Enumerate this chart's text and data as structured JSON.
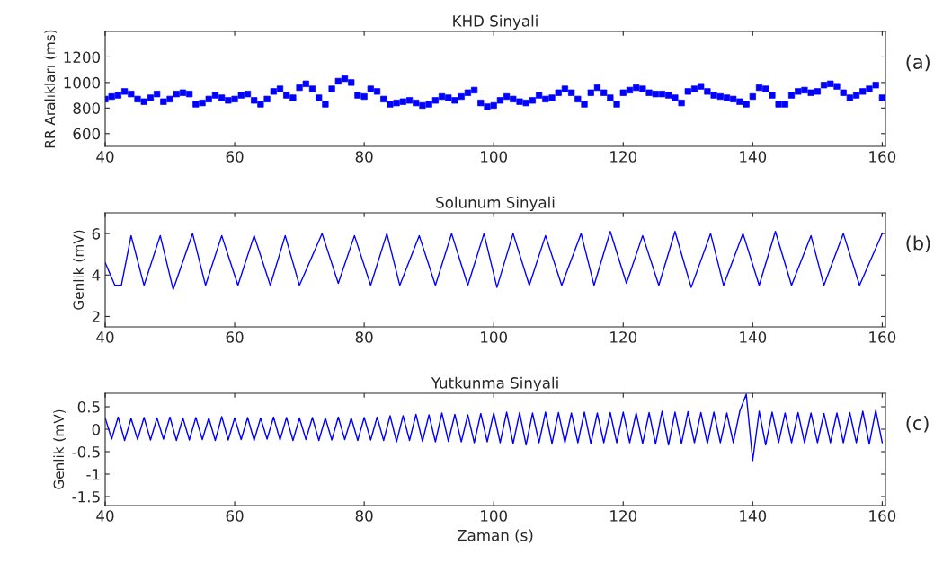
{
  "chart_data": [
    {
      "type": "scatter",
      "title": "KHD Sinyali",
      "ylabel": "RR Aralıkları (ms)",
      "annotations": [
        "(a)"
      ],
      "marker": "square",
      "xlim": [
        40,
        160.5
      ],
      "xticks": [
        40,
        60,
        80,
        100,
        120,
        140,
        160
      ],
      "ylim": [
        500,
        1400
      ],
      "yticks": [
        600,
        800,
        1000,
        1200
      ],
      "x": [
        40,
        41,
        42,
        43,
        44,
        45,
        46,
        47,
        48,
        49,
        50,
        51,
        52,
        53,
        54,
        55,
        56,
        57,
        58,
        59,
        60,
        61,
        62,
        63,
        64,
        65,
        66,
        67,
        68,
        69,
        70,
        71,
        72,
        73,
        74,
        75,
        76,
        77,
        78,
        79,
        80,
        81,
        82,
        83,
        84,
        85,
        86,
        87,
        88,
        89,
        90,
        91,
        92,
        93,
        94,
        95,
        96,
        97,
        98,
        99,
        100,
        101,
        102,
        103,
        104,
        105,
        106,
        107,
        108,
        109,
        110,
        111,
        112,
        113,
        114,
        115,
        116,
        117,
        118,
        119,
        120,
        121,
        122,
        123,
        124,
        125,
        126,
        127,
        128,
        129,
        130,
        131,
        132,
        133,
        134,
        135,
        136,
        137,
        138,
        139,
        140,
        141,
        142,
        143,
        144,
        145,
        146,
        147,
        148,
        149,
        150,
        151,
        152,
        153,
        154,
        155,
        156,
        157,
        158,
        159,
        160
      ],
      "series": [
        {
          "color": "#0000ff",
          "values": [
            870,
            890,
            900,
            930,
            910,
            870,
            850,
            880,
            910,
            850,
            870,
            910,
            920,
            910,
            830,
            840,
            870,
            900,
            880,
            860,
            870,
            900,
            910,
            860,
            830,
            870,
            930,
            950,
            900,
            880,
            960,
            990,
            950,
            880,
            830,
            950,
            1010,
            1030,
            1000,
            900,
            890,
            950,
            930,
            870,
            830,
            840,
            850,
            860,
            840,
            820,
            830,
            860,
            890,
            880,
            860,
            890,
            920,
            940,
            840,
            810,
            820,
            860,
            890,
            870,
            850,
            840,
            860,
            900,
            870,
            880,
            920,
            950,
            920,
            870,
            830,
            920,
            960,
            920,
            880,
            830,
            920,
            940,
            960,
            950,
            920,
            910,
            910,
            900,
            880,
            840,
            930,
            950,
            970,
            930,
            900,
            890,
            880,
            870,
            850,
            830,
            890,
            960,
            950,
            900,
            830,
            830,
            900,
            930,
            940,
            920,
            930,
            980,
            990,
            970,
            920,
            880,
            900,
            930,
            950,
            980,
            880
          ]
        }
      ]
    },
    {
      "type": "line",
      "title": "Solunum Sinyali",
      "ylabel": "Genlik (mV)",
      "annotations": [
        "(b)"
      ],
      "xlim": [
        40,
        160.5
      ],
      "xticks": [
        40,
        60,
        80,
        100,
        120,
        140,
        160
      ],
      "ylim": [
        1.5,
        7
      ],
      "yticks": [
        2,
        4,
        6
      ],
      "x": [
        40,
        41.5,
        42.5,
        44,
        46,
        48.5,
        50.5,
        53.5,
        55.5,
        58,
        60.5,
        63,
        65.5,
        67.8,
        70,
        73.5,
        76,
        78.5,
        81,
        83.5,
        85.5,
        88.5,
        91,
        93.5,
        96,
        98.5,
        100.5,
        103,
        105.5,
        108,
        110.5,
        113.5,
        115.5,
        118,
        120.5,
        123,
        125.5,
        128,
        130.5,
        133.5,
        135.5,
        138.5,
        141,
        143.5,
        146,
        149,
        151,
        154,
        156.5,
        160
      ],
      "series": [
        {
          "color": "#0000ff",
          "values": [
            4.6,
            3.5,
            3.5,
            5.9,
            3.5,
            5.9,
            3.3,
            6.0,
            3.5,
            5.9,
            3.5,
            5.9,
            3.5,
            5.9,
            3.5,
            6.0,
            3.6,
            5.9,
            3.5,
            6.0,
            3.5,
            5.9,
            3.5,
            6.0,
            3.5,
            6.0,
            3.4,
            6.0,
            3.5,
            5.9,
            3.5,
            6.0,
            3.5,
            6.1,
            3.6,
            5.9,
            3.5,
            6.1,
            3.4,
            6.0,
            3.5,
            6.0,
            3.5,
            6.1,
            3.5,
            5.9,
            3.5,
            6.0,
            3.5,
            6.0
          ]
        }
      ]
    },
    {
      "type": "line",
      "title": "Yutkunma Sinyali",
      "xlabel": "Zaman (s)",
      "ylabel": "Genlik (mV)",
      "annotations": [
        "(c)"
      ],
      "xlim": [
        40,
        160.5
      ],
      "xticks": [
        40,
        60,
        80,
        100,
        120,
        140,
        160
      ],
      "ylim": [
        -1.7,
        0.8
      ],
      "yticks": [
        0.5,
        0,
        -0.5,
        -1,
        -1.5
      ],
      "x": [
        40,
        41,
        42,
        43,
        44,
        45,
        46,
        47,
        48,
        49,
        50,
        51,
        52,
        53,
        54,
        55,
        56,
        57,
        58,
        59,
        60,
        61,
        62,
        63,
        64,
        65,
        66,
        67,
        68,
        69,
        70,
        71,
        72,
        73,
        74,
        75,
        76,
        77,
        78,
        79,
        80,
        81,
        82,
        83,
        84,
        85,
        86,
        87,
        88,
        89,
        90,
        91,
        92,
        93,
        94,
        95,
        96,
        97,
        98,
        99,
        100,
        101,
        102,
        103,
        104,
        105,
        106,
        107,
        108,
        109,
        110,
        111,
        112,
        113,
        114,
        115,
        116,
        117,
        118,
        119,
        120,
        121,
        122,
        123,
        124,
        125,
        126,
        127,
        128,
        129,
        130,
        131,
        132,
        133,
        134,
        135,
        136,
        137,
        138,
        139,
        140,
        141,
        142,
        143,
        144,
        145,
        146,
        147,
        148,
        149,
        150,
        151,
        152,
        153,
        154,
        155,
        156,
        157,
        158,
        159,
        160
      ],
      "series": [
        {
          "color": "#0000ff",
          "values": [
            0.25,
            -0.22,
            0.27,
            -0.25,
            0.24,
            -0.23,
            0.26,
            -0.24,
            0.25,
            -0.22,
            0.27,
            -0.25,
            0.25,
            -0.24,
            0.26,
            -0.23,
            0.25,
            -0.25,
            0.28,
            -0.24,
            0.25,
            -0.23,
            0.26,
            -0.25,
            0.25,
            -0.22,
            0.27,
            -0.24,
            0.26,
            -0.25,
            0.25,
            -0.23,
            0.26,
            -0.25,
            0.25,
            -0.24,
            0.27,
            -0.23,
            0.25,
            -0.25,
            0.26,
            -0.24,
            0.27,
            -0.25,
            0.3,
            -0.28,
            0.3,
            -0.25,
            0.33,
            -0.27,
            0.32,
            -0.28,
            0.36,
            -0.27,
            0.33,
            -0.28,
            0.32,
            -0.3,
            0.35,
            -0.28,
            0.36,
            -0.3,
            0.38,
            -0.32,
            0.37,
            -0.35,
            0.36,
            -0.3,
            0.38,
            -0.32,
            0.37,
            -0.3,
            0.36,
            -0.3,
            0.38,
            -0.32,
            0.36,
            -0.3,
            0.37,
            -0.3,
            0.38,
            -0.3,
            0.36,
            -0.32,
            0.37,
            -0.33,
            0.4,
            -0.35,
            0.38,
            -0.32,
            0.39,
            -0.3,
            0.37,
            -0.32,
            0.38,
            -0.3,
            0.36,
            -0.3,
            0.4,
            0.78,
            -0.7,
            0.4,
            -0.35,
            0.38,
            -0.3,
            0.36,
            -0.3,
            0.37,
            -0.3,
            0.36,
            -0.3,
            0.35,
            -0.3,
            0.36,
            -0.3,
            0.37,
            -0.3,
            0.4,
            -0.33,
            0.42,
            -0.3
          ]
        }
      ]
    }
  ]
}
